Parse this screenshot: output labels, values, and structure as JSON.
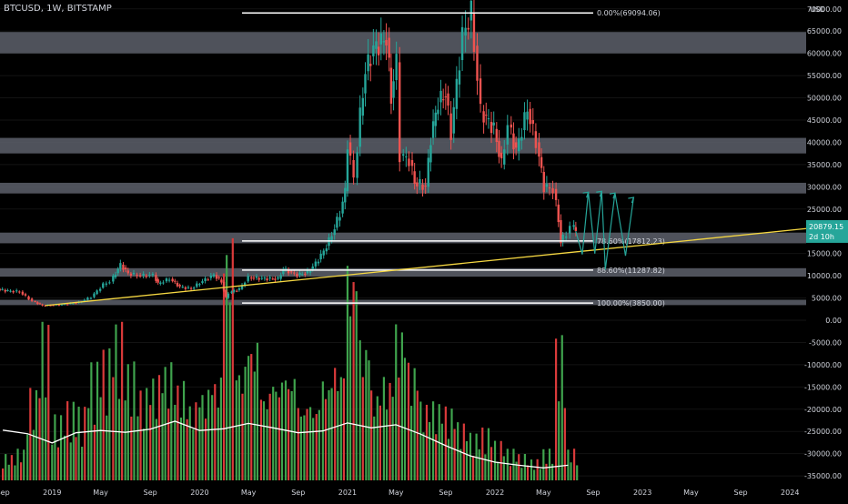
{
  "header": {
    "symbol": "BTCUSD, 1W, BITSTAMP"
  },
  "axis": {
    "currency": "USD",
    "y_ticks": [
      70000,
      65000,
      60000,
      55000,
      50000,
      45000,
      40000,
      35000,
      30000,
      25000,
      15000,
      10000,
      5000,
      0,
      -5000,
      -10000,
      -15000,
      -20000,
      -25000,
      -30000,
      -35000
    ],
    "y_tick_labels": [
      "70000.00",
      "65000.00",
      "60000.00",
      "55000.00",
      "50000.00",
      "45000.00",
      "40000.00",
      "35000.00",
      "30000.00",
      "25000.00",
      "15000.00",
      "10000.00",
      "5000.00",
      "0.00",
      "-5000.00",
      "-10000.00",
      "-15000.00",
      "-20000.00",
      "-25000.00",
      "-30000.00",
      "-35000.00"
    ],
    "x_ticks": [
      {
        "label": "Sep",
        "date": "2018-09"
      },
      {
        "label": "2019",
        "date": "2019-01"
      },
      {
        "label": "May",
        "date": "2019-05"
      },
      {
        "label": "Sep",
        "date": "2019-09"
      },
      {
        "label": "2020",
        "date": "2020-01"
      },
      {
        "label": "May",
        "date": "2020-05"
      },
      {
        "label": "Sep",
        "date": "2020-09"
      },
      {
        "label": "2021",
        "date": "2021-01"
      },
      {
        "label": "May",
        "date": "2021-05"
      },
      {
        "label": "Sep",
        "date": "2021-09"
      },
      {
        "label": "2022",
        "date": "2022-01"
      },
      {
        "label": "May",
        "date": "2022-05"
      },
      {
        "label": "Sep",
        "date": "2022-09"
      },
      {
        "label": "2023",
        "date": "2023-01"
      },
      {
        "label": "May",
        "date": "2023-05"
      },
      {
        "label": "Sep",
        "date": "2023-09"
      },
      {
        "label": "2024",
        "date": "2024-01"
      }
    ]
  },
  "price_tag": {
    "value": "20879.15",
    "countdown": "2d 10h",
    "color": "#26a69a"
  },
  "chart_data": {
    "type": "candlestick",
    "symbol": "BTCUSD",
    "interval": "1W",
    "exchange": "BITSTAMP",
    "ylim": [
      -36000,
      72000
    ],
    "xlim": [
      "2018-08-25",
      "2024-02-10"
    ],
    "colors": {
      "up": "#26a69a",
      "down": "#ef5350",
      "volume_up": "#3fa34d",
      "volume_down": "#d93a3a",
      "volume_ma": "#ffffff",
      "zones": "#5d606b",
      "trendline": "#f5d742",
      "arrows": "#26a69a"
    },
    "price_path": [
      [
        "2018-08-25",
        7000
      ],
      [
        "2018-09-20",
        6600
      ],
      [
        "2018-10-20",
        6400
      ],
      [
        "2018-11-20",
        4300
      ],
      [
        "2018-12-15",
        3300
      ],
      [
        "2019-02-01",
        3500
      ],
      [
        "2019-03-15",
        4000
      ],
      [
        "2019-04-15",
        5200
      ],
      [
        "2019-05-15",
        8000
      ],
      [
        "2019-06-01",
        8700
      ],
      [
        "2019-06-26",
        12500
      ],
      [
        "2019-07-15",
        10500
      ],
      [
        "2019-08-15",
        10000
      ],
      [
        "2019-09-15",
        10200
      ],
      [
        "2019-09-26",
        8200
      ],
      [
        "2019-10-26",
        9300
      ],
      [
        "2019-11-20",
        7500
      ],
      [
        "2019-12-18",
        7100
      ],
      [
        "2020-01-15",
        8800
      ],
      [
        "2020-02-12",
        10200
      ],
      [
        "2020-03-01",
        8600
      ],
      [
        "2020-03-12",
        5000
      ],
      [
        "2020-03-20",
        6200
      ],
      [
        "2020-04-15",
        7000
      ],
      [
        "2020-05-08",
        9600
      ],
      [
        "2020-06-10",
        9400
      ],
      [
        "2020-07-20",
        9300
      ],
      [
        "2020-08-01",
        11500
      ],
      [
        "2020-09-05",
        10200
      ],
      [
        "2020-10-01",
        10700
      ],
      [
        "2020-10-21",
        12800
      ],
      [
        "2020-11-10",
        15500
      ],
      [
        "2020-11-30",
        19200
      ],
      [
        "2020-12-20",
        24000
      ],
      [
        "2021-01-01",
        29000
      ],
      [
        "2021-01-08",
        40000
      ],
      [
        "2021-01-25",
        32000
      ],
      [
        "2021-02-08",
        46000
      ],
      [
        "2021-02-21",
        56000
      ],
      [
        "2021-03-13",
        61000
      ],
      [
        "2021-04-14",
        63500
      ],
      [
        "2021-04-25",
        50000
      ],
      [
        "2021-05-10",
        58000
      ],
      [
        "2021-05-19",
        37000
      ],
      [
        "2021-06-10",
        36000
      ],
      [
        "2021-06-22",
        31000
      ],
      [
        "2021-07-20",
        30000
      ],
      [
        "2021-08-01",
        41000
      ],
      [
        "2021-08-20",
        49000
      ],
      [
        "2021-09-07",
        51000
      ],
      [
        "2021-09-21",
        42000
      ],
      [
        "2021-10-20",
        64000
      ],
      [
        "2021-11-10",
        69094
      ],
      [
        "2021-12-04",
        47000
      ],
      [
        "2022-01-05",
        43000
      ],
      [
        "2022-01-24",
        35000
      ],
      [
        "2022-02-10",
        44000
      ],
      [
        "2022-03-01",
        38000
      ],
      [
        "2022-03-29",
        47500
      ],
      [
        "2022-04-20",
        40000
      ],
      [
        "2022-05-09",
        30000
      ],
      [
        "2022-06-01",
        29500
      ],
      [
        "2022-06-13",
        22500
      ],
      [
        "2022-06-18",
        17600
      ],
      [
        "2022-07-05",
        19500
      ],
      [
        "2022-07-15",
        21000
      ],
      [
        "2022-07-26",
        20879
      ]
    ],
    "volume": {
      "min": -36000,
      "bars": [
        [
          "2018-09",
          0.1
        ],
        [
          "2018-10",
          0.12
        ],
        [
          "2018-11",
          0.35
        ],
        [
          "2018-12",
          0.6
        ],
        [
          "2019-01",
          0.25
        ],
        [
          "2019-02",
          0.3
        ],
        [
          "2019-03",
          0.28
        ],
        [
          "2019-04",
          0.45
        ],
        [
          "2019-05",
          0.5
        ],
        [
          "2019-06",
          0.6
        ],
        [
          "2019-07",
          0.45
        ],
        [
          "2019-08",
          0.35
        ],
        [
          "2019-09",
          0.4
        ],
        [
          "2019-10",
          0.45
        ],
        [
          "2019-11",
          0.38
        ],
        [
          "2019-12",
          0.3
        ],
        [
          "2020-01",
          0.35
        ],
        [
          "2020-02",
          0.4
        ],
        [
          "2020-03",
          0.95
        ],
        [
          "2020-04",
          0.45
        ],
        [
          "2020-05",
          0.55
        ],
        [
          "2020-06",
          0.35
        ],
        [
          "2020-07",
          0.4
        ],
        [
          "2020-08",
          0.42
        ],
        [
          "2020-09",
          0.3
        ],
        [
          "2020-10",
          0.3
        ],
        [
          "2020-11",
          0.4
        ],
        [
          "2020-12",
          0.45
        ],
        [
          "2021-01",
          0.85
        ],
        [
          "2021-02",
          0.55
        ],
        [
          "2021-03",
          0.35
        ],
        [
          "2021-04",
          0.4
        ],
        [
          "2021-05",
          0.6
        ],
        [
          "2021-06",
          0.45
        ],
        [
          "2021-07",
          0.3
        ],
        [
          "2021-08",
          0.3
        ],
        [
          "2021-09",
          0.28
        ],
        [
          "2021-10",
          0.22
        ],
        [
          "2021-11",
          0.18
        ],
        [
          "2021-12",
          0.2
        ],
        [
          "2022-01",
          0.15
        ],
        [
          "2022-02",
          0.12
        ],
        [
          "2022-03",
          0.1
        ],
        [
          "2022-04",
          0.08
        ],
        [
          "2022-05",
          0.12
        ],
        [
          "2022-06",
          0.55
        ],
        [
          "2022-07",
          0.12
        ]
      ],
      "ma": [
        [
          "2018-09",
          -24700
        ],
        [
          "2018-11",
          -25500
        ],
        [
          "2019-01",
          -27600
        ],
        [
          "2019-03",
          -25300
        ],
        [
          "2019-05",
          -24800
        ],
        [
          "2019-07",
          -25200
        ],
        [
          "2019-09",
          -24500
        ],
        [
          "2019-11",
          -22700
        ],
        [
          "2020-01",
          -24800
        ],
        [
          "2020-03",
          -24400
        ],
        [
          "2020-05",
          -23200
        ],
        [
          "2020-07",
          -24200
        ],
        [
          "2020-09",
          -25300
        ],
        [
          "2020-11",
          -24900
        ],
        [
          "2021-01",
          -23100
        ],
        [
          "2021-03",
          -24200
        ],
        [
          "2021-05",
          -23500
        ],
        [
          "2021-07",
          -25600
        ],
        [
          "2021-09",
          -28200
        ],
        [
          "2021-11",
          -30500
        ],
        [
          "2022-01",
          -31900
        ],
        [
          "2022-03",
          -32600
        ],
        [
          "2022-05",
          -33200
        ],
        [
          "2022-07",
          -32600
        ]
      ]
    },
    "fib_levels": [
      {
        "label": "0.00%(69094.06)",
        "value": 69094.06,
        "color": "#ffffff"
      },
      {
        "label": "78.60%(17812.23)",
        "value": 17812.23,
        "color": "#ffffff"
      },
      {
        "label": "88.60%(11287.82)",
        "value": 11287.82,
        "color": "#ffffff"
      },
      {
        "label": "100.00%(3850.00)",
        "value": 3850.0,
        "color": "#ffffff"
      }
    ],
    "zones": [
      [
        60000,
        64800
      ],
      [
        17300,
        19700
      ],
      [
        9800,
        11700
      ],
      [
        3400,
        4600
      ],
      [
        37500,
        41000
      ],
      [
        28500,
        30900
      ]
    ],
    "trendline": {
      "from": [
        "2018-12-15",
        3300
      ],
      "to": [
        "2024-02-10",
        20600
      ]
    }
  }
}
